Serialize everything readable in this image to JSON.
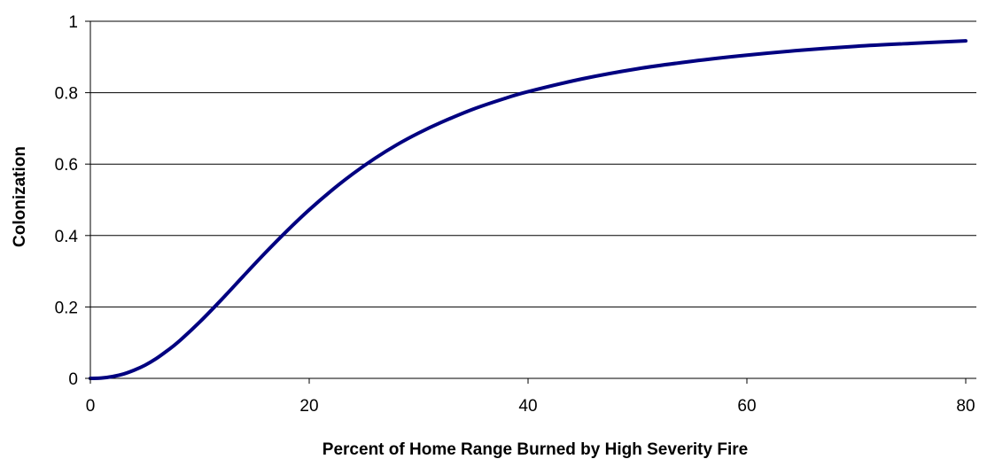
{
  "chart_data": {
    "type": "line",
    "title": "",
    "xlabel": "Percent of Home Range Burned by High Severity Fire",
    "ylabel": "Colonization",
    "xlim": [
      0,
      80
    ],
    "ylim": [
      0,
      1
    ],
    "xticks": [
      "0",
      "20",
      "40",
      "60",
      "80"
    ],
    "yticks": [
      "0",
      "0.2",
      "0.4",
      "0.6",
      "0.8",
      "1"
    ],
    "xtick_values": [
      0,
      20,
      40,
      60,
      80
    ],
    "ytick_values": [
      0,
      0.2,
      0.4,
      0.6,
      0.8,
      1
    ],
    "grid": "horizontal",
    "legend": "none",
    "series": [
      {
        "color": "#000080",
        "x": [
          0,
          1,
          2,
          3,
          4,
          5,
          6,
          7,
          8,
          10,
          12,
          14,
          16,
          18,
          20,
          22,
          24,
          26,
          28,
          30,
          32,
          35,
          38,
          40,
          45,
          50,
          55,
          60,
          65,
          70,
          75,
          80
        ],
        "y": [
          0.0,
          0.001,
          0.005,
          0.012,
          0.023,
          0.037,
          0.055,
          0.077,
          0.101,
          0.158,
          0.221,
          0.287,
          0.352,
          0.414,
          0.472,
          0.525,
          0.573,
          0.616,
          0.654,
          0.687,
          0.716,
          0.754,
          0.785,
          0.803,
          0.839,
          0.867,
          0.888,
          0.905,
          0.919,
          0.93,
          0.938,
          0.945
        ]
      }
    ]
  }
}
